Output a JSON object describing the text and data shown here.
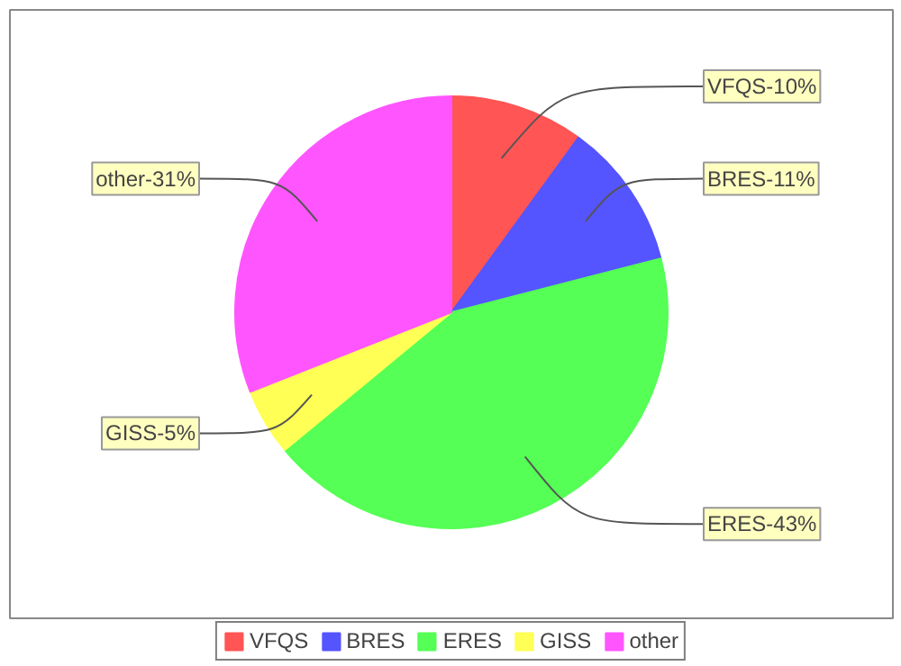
{
  "chart_data": {
    "type": "pie",
    "categories": [
      "VFQS",
      "BRES",
      "ERES",
      "GISS",
      "other"
    ],
    "values": [
      10,
      11,
      43,
      5,
      31
    ],
    "colors": [
      "#ff5555",
      "#5555ff",
      "#55ff55",
      "#ffff55",
      "#ff55ff"
    ],
    "value_labels": [
      "VFQS-10%",
      "BRES-11%",
      "ERES-43%",
      "GISS-5%",
      "other-31%"
    ],
    "legend": "bottom"
  }
}
